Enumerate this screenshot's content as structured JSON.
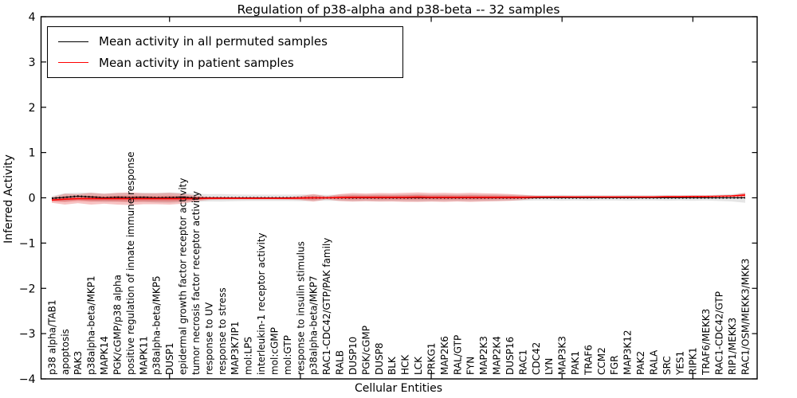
{
  "chart_data": {
    "type": "line",
    "title": "Regulation of p38-alpha and p38-beta -- 32 samples",
    "xlabel": "Cellular Entities",
    "ylabel": "Inferred Activity",
    "ylim": [
      -4,
      4
    ],
    "y_ticks": [
      4,
      3,
      2,
      1,
      0,
      -1,
      -2,
      -3,
      -4
    ],
    "x_major_tick_indices": [
      9,
      19,
      29,
      39,
      49
    ],
    "grid": false,
    "legend_position": "upper-left",
    "categories": [
      "p38 alpha/TAB1",
      "apoptosis",
      "PAK3",
      "p38alpha-beta/MKP1",
      "MAPK14",
      "PGK/cGMP/p38 alpha",
      "positive regulation of innate immune response",
      "MAPK11",
      "p38alpha-beta/MKP5",
      "DUSP1",
      "epidermal growth factor receptor activity",
      "tumor necrosis factor receptor activity",
      "response to UV",
      "response to stress",
      "MAP3K7IP1",
      "mol:LPS",
      "interleukin-1 receptor activity",
      "mol:cGMP",
      "mol:GTP",
      "response to insulin stimulus",
      "p38alpha-beta/MKP7",
      "RAC1-CDC42/GTP/PAK family",
      "RALB",
      "DUSP10",
      "PGK/cGMP",
      "DUSP8",
      "BLK",
      "HCK",
      "LCK",
      "PRKG1",
      "MAP2K6",
      "RAL/GTP",
      "FYN",
      "MAP2K3",
      "MAP2K4",
      "DUSP16",
      "RAC1",
      "CDC42",
      "LYN",
      "MAP3K3",
      "PAK1",
      "TRAF6",
      "CCM2",
      "FGR",
      "MAP3K12",
      "PAK2",
      "RALA",
      "SRC",
      "YES1",
      "RIPK1",
      "TRAF6/MEKK3",
      "RAC1-CDC42/GTP",
      "RIP1/MEKK3",
      "RAC1/OSM/MEKK3/MKK3"
    ],
    "series": [
      {
        "name": "Mean activity in all permuted samples",
        "color": "#000000",
        "line_style": "dotted",
        "values": [
          -0.01,
          0.01,
          0.035,
          0.02,
          0.0,
          0.01,
          0.005,
          0.01,
          0.0,
          0.005,
          0.01,
          0.0,
          0.0,
          0.0,
          0.0,
          0.0,
          0.0,
          0.0,
          0.0,
          0.0,
          0.0,
          0.0,
          0.0,
          0.0,
          0.0,
          0.0,
          0.0,
          0.0,
          0.0,
          0.0,
          0.0,
          0.0,
          0.0,
          0.0,
          0.0,
          0.0,
          0.0,
          0.0,
          0.0,
          0.0,
          0.0,
          0.0,
          0.0,
          0.0,
          0.0,
          0.0,
          0.0,
          0.0,
          0.0,
          0.0,
          0.0,
          0.0,
          0.0,
          0.0
        ],
        "band_halfwidth": [
          0.05,
          0.09,
          0.08,
          0.095,
          0.09,
          0.095,
          0.1,
          0.1,
          0.105,
          0.115,
          0.105,
          0.09,
          0.08,
          0.085,
          0.075,
          0.07,
          0.07,
          0.07,
          0.07,
          0.075,
          0.07,
          0.065,
          0.07,
          0.075,
          0.07,
          0.075,
          0.07,
          0.075,
          0.08,
          0.075,
          0.075,
          0.07,
          0.075,
          0.07,
          0.07,
          0.065,
          0.065,
          0.06,
          0.06,
          0.065,
          0.06,
          0.065,
          0.06,
          0.06,
          0.065,
          0.06,
          0.06,
          0.065,
          0.06,
          0.065,
          0.06,
          0.07,
          0.08,
          0.11
        ],
        "band_color": "rgba(0,0,0,0.10)"
      },
      {
        "name": "Mean activity in patient samples",
        "color": "#ff0000",
        "line_style": "solid",
        "values": [
          -0.05,
          -0.03,
          -0.02,
          -0.02,
          -0.02,
          -0.02,
          -0.02,
          -0.02,
          -0.02,
          -0.02,
          -0.02,
          -0.015,
          -0.01,
          -0.01,
          -0.01,
          -0.01,
          -0.01,
          -0.01,
          -0.01,
          -0.005,
          0.0,
          0.0,
          0.005,
          0.01,
          0.01,
          0.01,
          0.01,
          0.01,
          0.015,
          0.01,
          0.01,
          0.01,
          0.01,
          0.01,
          0.01,
          0.01,
          0.01,
          0.015,
          0.02,
          0.02,
          0.02,
          0.02,
          0.02,
          0.02,
          0.02,
          0.02,
          0.02,
          0.025,
          0.025,
          0.03,
          0.03,
          0.035,
          0.04,
          0.06
        ],
        "band_halfwidth": [
          0.06,
          0.12,
          0.1,
          0.13,
          0.11,
          0.13,
          0.14,
          0.12,
          0.12,
          0.13,
          0.11,
          0.06,
          0.035,
          0.03,
          0.025,
          0.025,
          0.025,
          0.025,
          0.03,
          0.045,
          0.085,
          0.035,
          0.075,
          0.095,
          0.085,
          0.095,
          0.09,
          0.1,
          0.105,
          0.095,
          0.1,
          0.09,
          0.1,
          0.09,
          0.085,
          0.075,
          0.055,
          0.03,
          0.02,
          0.018,
          0.015,
          0.015,
          0.015,
          0.015,
          0.015,
          0.015,
          0.015,
          0.015,
          0.015,
          0.015,
          0.015,
          0.015,
          0.02,
          0.05
        ],
        "band_color": "rgba(221,0,0,0.24)",
        "inner_band_scale": 0.5
      }
    ]
  }
}
